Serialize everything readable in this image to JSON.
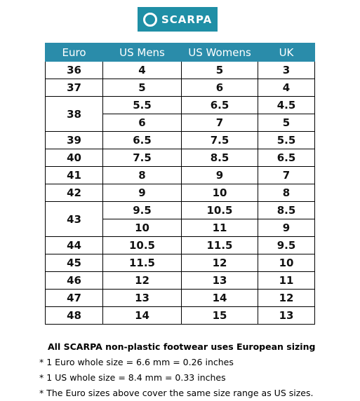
{
  "logo": {
    "text": "SCARPA"
  },
  "table": {
    "header": [
      "Euro",
      "US Mens",
      "US Womens",
      "UK"
    ],
    "rows": [
      {
        "euro": "36",
        "sizes": [
          [
            "4",
            "5",
            "3"
          ]
        ]
      },
      {
        "euro": "37",
        "sizes": [
          [
            "5",
            "6",
            "4"
          ]
        ]
      },
      {
        "euro": "38",
        "sizes": [
          [
            "5.5",
            "6.5",
            "4.5"
          ],
          [
            "6",
            "7",
            "5"
          ]
        ]
      },
      {
        "euro": "39",
        "sizes": [
          [
            "6.5",
            "7.5",
            "5.5"
          ]
        ]
      },
      {
        "euro": "40",
        "sizes": [
          [
            "7.5",
            "8.5",
            "6.5"
          ]
        ]
      },
      {
        "euro": "41",
        "sizes": [
          [
            "8",
            "9",
            "7"
          ]
        ]
      },
      {
        "euro": "42",
        "sizes": [
          [
            "9",
            "10",
            "8"
          ]
        ]
      },
      {
        "euro": "43",
        "sizes": [
          [
            "9.5",
            "10.5",
            "8.5"
          ],
          [
            "10",
            "11",
            "9"
          ]
        ]
      },
      {
        "euro": "44",
        "sizes": [
          [
            "10.5",
            "11.5",
            "9.5"
          ]
        ]
      },
      {
        "euro": "45",
        "sizes": [
          [
            "11.5",
            "12",
            "10"
          ]
        ]
      },
      {
        "euro": "46",
        "sizes": [
          [
            "12",
            "13",
            "11"
          ]
        ]
      },
      {
        "euro": "47",
        "sizes": [
          [
            "13",
            "14",
            "12"
          ]
        ]
      },
      {
        "euro": "48",
        "sizes": [
          [
            "14",
            "15",
            "13"
          ]
        ]
      }
    ]
  },
  "notes": {
    "heading": "All SCARPA non-plastic footwear uses European sizing",
    "items": [
      "*  1 Euro whole size = 6.6 mm = 0.26 inches",
      "*  1 US whole size = 8.4 mm = 0.33 inches",
      "*  The Euro sizes above cover the same size range as  US sizes."
    ]
  }
}
